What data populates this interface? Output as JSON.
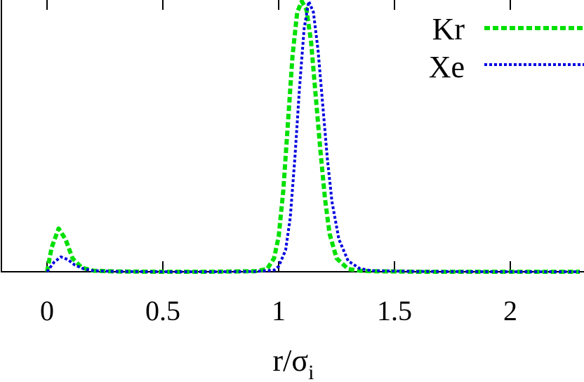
{
  "chart_data": {
    "type": "line",
    "xlabel": "r/σ",
    "xlabel_subscript": "i",
    "ylabel": "",
    "xlim": [
      -0.2,
      2.3
    ],
    "ylim": [
      0,
      1
    ],
    "x_ticks": [
      "0",
      "0.5",
      "1",
      "1.5",
      "2"
    ],
    "legend_position": "top-right",
    "series": [
      {
        "name": "Kr",
        "color": "#00e000",
        "style": "dashed",
        "x": [
          0.0,
          0.02,
          0.05,
          0.08,
          0.11,
          0.15,
          0.2,
          0.3,
          0.5,
          0.7,
          0.9,
          0.95,
          0.98,
          1.0,
          1.02,
          1.04,
          1.06,
          1.08,
          1.1,
          1.12,
          1.14,
          1.16,
          1.18,
          1.2,
          1.22,
          1.25,
          1.3,
          1.35,
          1.4,
          1.6,
          2.0,
          2.3
        ],
        "y": [
          0.0,
          0.09,
          0.16,
          0.12,
          0.05,
          0.015,
          0.004,
          0.001,
          0.0,
          0.0,
          0.002,
          0.01,
          0.05,
          0.13,
          0.3,
          0.55,
          0.8,
          0.96,
          1.0,
          0.97,
          0.85,
          0.65,
          0.45,
          0.27,
          0.14,
          0.05,
          0.01,
          0.004,
          0.002,
          0.0,
          0.0,
          0.0
        ]
      },
      {
        "name": "Xe",
        "color": "#0000e0",
        "style": "dotted",
        "x": [
          0.0,
          0.03,
          0.06,
          0.09,
          0.12,
          0.16,
          0.2,
          0.3,
          0.5,
          0.7,
          0.9,
          0.98,
          1.0,
          1.03,
          1.05,
          1.07,
          1.09,
          1.11,
          1.13,
          1.15,
          1.17,
          1.19,
          1.21,
          1.23,
          1.26,
          1.3,
          1.35,
          1.4,
          1.6,
          2.0,
          2.3
        ],
        "y": [
          0.0,
          0.035,
          0.055,
          0.045,
          0.025,
          0.01,
          0.004,
          0.001,
          0.0,
          0.0,
          0.001,
          0.006,
          0.02,
          0.08,
          0.2,
          0.42,
          0.68,
          0.9,
          1.0,
          0.96,
          0.82,
          0.62,
          0.42,
          0.26,
          0.12,
          0.04,
          0.012,
          0.004,
          0.001,
          0.0,
          0.0
        ]
      }
    ]
  }
}
